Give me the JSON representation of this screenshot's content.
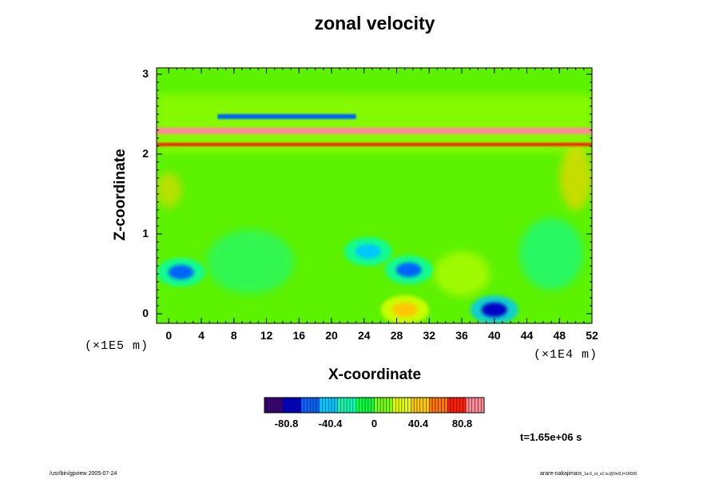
{
  "chart_data": {
    "type": "heatmap",
    "title": "zonal velocity",
    "xlabel": "X-coordinate",
    "ylabel": "Z-coordinate",
    "x_unit": "(×1E4 m)",
    "y_unit": "(×1E5 m)",
    "xlim": [
      -1.5,
      52
    ],
    "ylim": [
      -0.12,
      3.08
    ],
    "x_ticks": [
      "0",
      "4",
      "8",
      "12",
      "16",
      "20",
      "24",
      "28",
      "32",
      "36",
      "40",
      "44",
      "48",
      "52"
    ],
    "y_ticks": [
      "0",
      "1",
      "2",
      "3"
    ],
    "colorbar": {
      "range": [
        -101,
        101
      ],
      "ticks": [
        "-80.8",
        "-40.4",
        "0",
        "40.4",
        "80.8"
      ],
      "colors": [
        "#3c0078",
        "#0000c8",
        "#0064ff",
        "#00c8ff",
        "#00ffb4",
        "#00ff40",
        "#78ff00",
        "#e6ff00",
        "#ffc800",
        "#ff7800",
        "#ff1e00",
        "#ff8c96"
      ]
    },
    "time_label": "t=1.65e+06 s",
    "features": [
      {
        "desc": "jet core",
        "x_range": [
          -1.5,
          52
        ],
        "z_range": [
          2.25,
          2.33
        ],
        "value": 85
      },
      {
        "desc": "jet core",
        "x_range": [
          -1.5,
          52
        ],
        "z_range": [
          2.1,
          2.14
        ],
        "value": 70
      },
      {
        "desc": "negative band",
        "x_range": [
          6,
          23
        ],
        "z_range": [
          2.44,
          2.5
        ],
        "value": -60
      },
      {
        "desc": "eddy",
        "x": 1.5,
        "z": 0.52,
        "value": -55
      },
      {
        "desc": "eddy",
        "x": 24.5,
        "z": 0.78,
        "value": -50
      },
      {
        "desc": "eddy",
        "x": 29.5,
        "z": 0.55,
        "value": -60
      },
      {
        "desc": "eddy",
        "x": 40,
        "z": 0.05,
        "value": -80
      },
      {
        "desc": "eddy",
        "x": 29,
        "z": 0.05,
        "value": 50
      }
    ]
  },
  "footer": {
    "left": "/usr/bin/gpview 2005-07-24",
    "right": "arare-nakajima",
    "right_small": "05_1a-5_et_v2.nc@Vel3,t=18000"
  }
}
